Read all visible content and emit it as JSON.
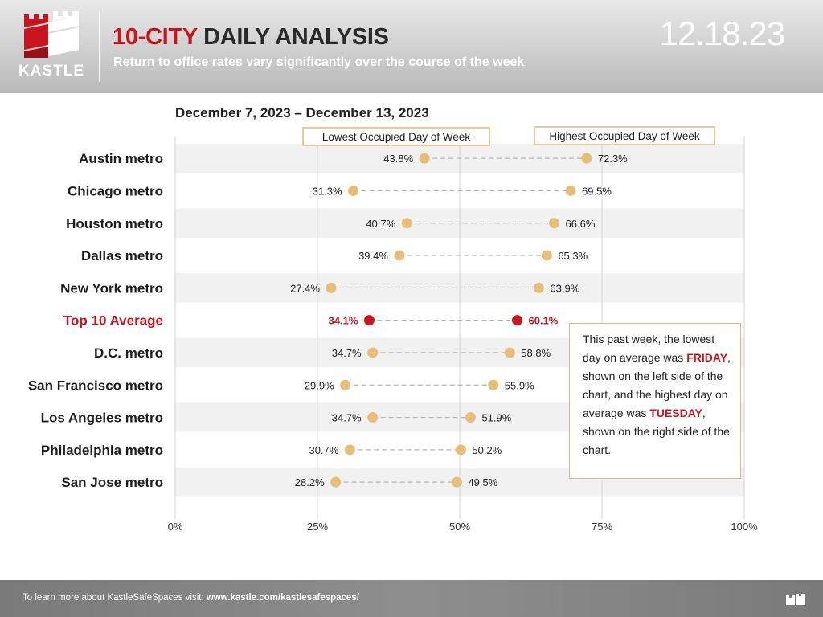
{
  "header": {
    "logo_text": "KASTLE",
    "title_accent": "10-CITY",
    "title_rest": " DAILY ANALYSIS",
    "subtitle": "Return to office rates vary significantly over the course of the week",
    "date": "12.18.23"
  },
  "period": "December 7, 2023 – December 13, 2023",
  "legend": {
    "low": "Lowest Occupied Day of Week",
    "high": "Highest Occupied Day of Week"
  },
  "callout": {
    "p1": "This past week, the lowest day on average was ",
    "low_day": "FRIDAY",
    "p2": ", shown on the left side of the chart, and the highest day on average was ",
    "high_day": "TUESDAY",
    "p3": ", shown on the right side of the chart."
  },
  "footer": {
    "text": "To learn more about KastleSafeSpaces visit: ",
    "link": "www.kastle.com/kastlesafespaces/"
  },
  "colors": {
    "accent_red": "#c8141e",
    "dot_tan": "#e8bd77",
    "legend_border": "#e4b77f"
  },
  "chart_data": {
    "type": "dumbbell",
    "xlim": [
      0,
      100
    ],
    "xticks": [
      "0%",
      "25%",
      "50%",
      "75%",
      "100%"
    ],
    "xtick_values": [
      0,
      25,
      50,
      75,
      100
    ],
    "grid": true,
    "series": [
      {
        "name": "Lowest Occupied Day of Week",
        "values": [
          43.8,
          31.3,
          40.7,
          39.4,
          27.4,
          34.1,
          34.7,
          29.9,
          34.7,
          30.7,
          28.2
        ]
      },
      {
        "name": "Highest Occupied Day of Week",
        "values": [
          72.3,
          69.5,
          66.6,
          65.3,
          63.9,
          60.1,
          58.8,
          55.9,
          51.9,
          50.2,
          49.5
        ]
      }
    ],
    "categories": [
      "Austin metro",
      "Chicago metro",
      "Houston metro",
      "Dallas metro",
      "New York metro",
      "Top 10 Average",
      "D.C. metro",
      "San Francisco metro",
      "Los Angeles metro",
      "Philadelphia metro",
      "San Jose metro"
    ],
    "low_labels": [
      "43.8%",
      "31.3%",
      "40.7%",
      "39.4%",
      "27.4%",
      "34.1%",
      "34.7%",
      "29.9%",
      "34.7%",
      "30.7%",
      "28.2%"
    ],
    "high_labels": [
      "72.3%",
      "69.5%",
      "66.6%",
      "65.3%",
      "63.9%",
      "60.1%",
      "58.8%",
      "55.9%",
      "51.9%",
      "50.2%",
      "49.5%"
    ],
    "highlight": "Top 10 Average"
  }
}
